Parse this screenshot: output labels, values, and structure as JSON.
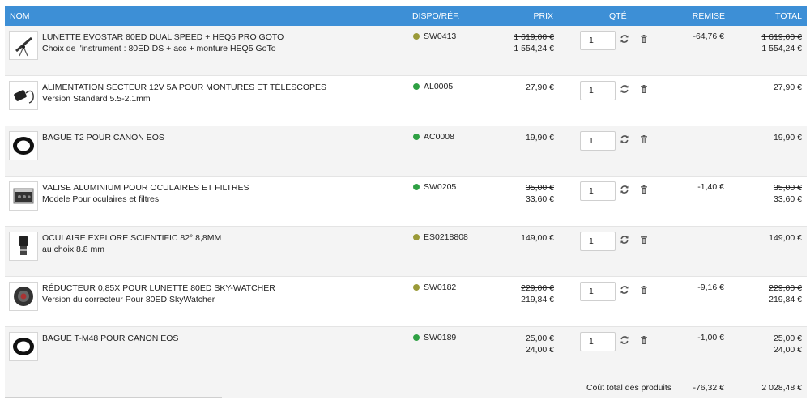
{
  "header": {
    "nom": "NOM",
    "dispo": "DISPO/RÉF.",
    "prix": "PRIX",
    "qte": "QTÉ",
    "remise": "REMISE",
    "total": "TOTAL",
    "color": "#3d8fd6"
  },
  "items": [
    {
      "name": "LUNETTE EVOSTAR 80ED DUAL SPEED + HEQ5 PRO GOTO",
      "desc": "Choix de l'instrument : 80ED DS + acc + monture HEQ5 GoTo",
      "ref": "SW0413",
      "dot_color": "#9a9a38",
      "price_old": "1 619,00 €",
      "price": "1 554,24 €",
      "qty": "1",
      "discount": "-64,76 €",
      "total_old": "1 619,00 €",
      "total": "1 554,24 €",
      "image_icon": "telescope-icon"
    },
    {
      "name": "ALIMENTATION SECTEUR 12V 5A POUR MONTURES ET TÉLESCOPES",
      "desc": "Version Standard 5.5-2.1mm",
      "ref": "AL0005",
      "dot_color": "#2ea043",
      "price_old": "",
      "price": "27,90 €",
      "qty": "1",
      "discount": "",
      "total_old": "",
      "total": "27,90 €",
      "image_icon": "power-adapter-icon"
    },
    {
      "name": "BAGUE T2 POUR CANON EOS",
      "desc": "",
      "ref": "AC0008",
      "dot_color": "#2ea043",
      "price_old": "",
      "price": "19,90 €",
      "qty": "1",
      "discount": "",
      "total_old": "",
      "total": "19,90 €",
      "image_icon": "t-ring-icon"
    },
    {
      "name": "VALISE ALUMINIUM POUR OCULAIRES ET FILTRES",
      "desc": "Modele Pour oculaires et filtres",
      "ref": "SW0205",
      "dot_color": "#2ea043",
      "price_old": "35,00 €",
      "price": "33,60 €",
      "qty": "1",
      "discount": "-1,40 €",
      "total_old": "35,00 €",
      "total": "33,60 €",
      "image_icon": "aluminium-case-icon"
    },
    {
      "name": "OCULAIRE EXPLORE SCIENTIFIC 82° 8,8MM",
      "desc": "au choix 8.8 mm",
      "ref": "ES0218808",
      "dot_color": "#9a9a38",
      "price_old": "",
      "price": "149,00 €",
      "qty": "1",
      "discount": "",
      "total_old": "",
      "total": "149,00 €",
      "image_icon": "eyepiece-icon"
    },
    {
      "name": "RÉDUCTEUR 0,85X POUR LUNETTE 80ED SKY-WATCHER",
      "desc": "Version du correcteur Pour 80ED SkyWatcher",
      "ref": "SW0182",
      "dot_color": "#9a9a38",
      "price_old": "229,00 €",
      "price": "219,84 €",
      "qty": "1",
      "discount": "-9,16 €",
      "total_old": "229,00 €",
      "total": "219,84 €",
      "image_icon": "reducer-icon"
    },
    {
      "name": "BAGUE T-M48 POUR CANON EOS",
      "desc": "",
      "ref": "SW0189",
      "dot_color": "#2ea043",
      "price_old": "25,00 €",
      "price": "24,00 €",
      "qty": "1",
      "discount": "-1,00 €",
      "total_old": "25,00 €",
      "total": "24,00 €",
      "image_icon": "t-ring-icon"
    }
  ],
  "footer": {
    "label": "Coût total des produits",
    "discount": "-76,32 €",
    "total": "2 028,48 €"
  }
}
